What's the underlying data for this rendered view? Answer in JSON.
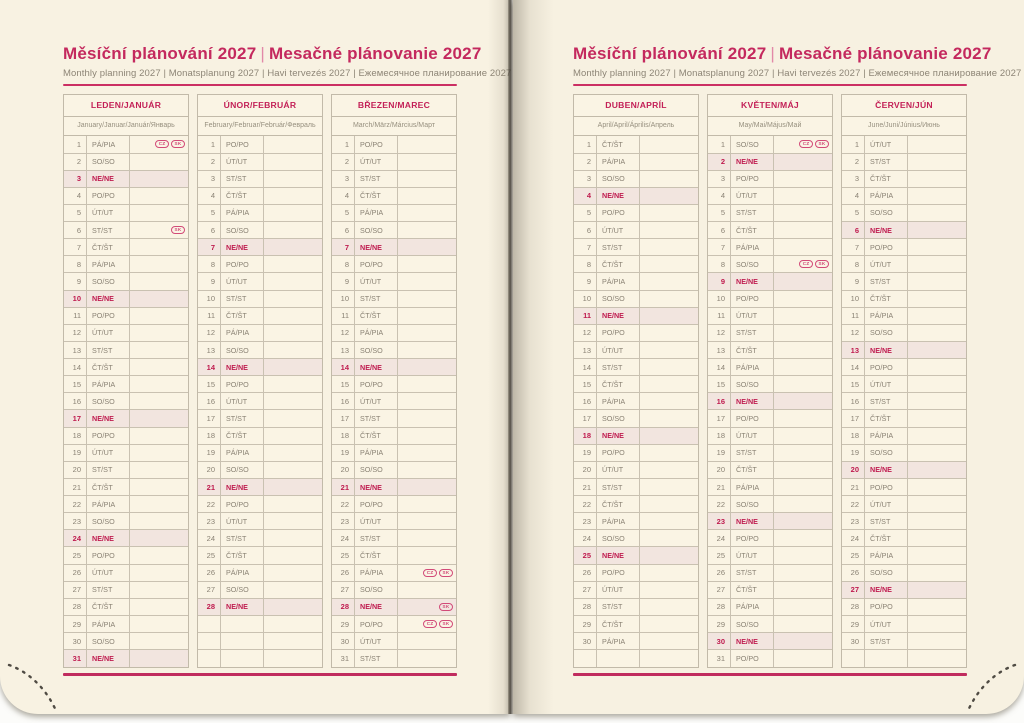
{
  "book": {
    "title_cs": "Měsíční plánování 2027",
    "title_sk": "Mesačné plánovanie 2027",
    "title_separator": "|",
    "subtitle": "Monthly planning 2027 | Monatsplanung 2027 | Havi tervezés 2027 | Ежемесячное планирование 2027",
    "year": "2027"
  },
  "colors": {
    "accent_magenta": "#c4295e",
    "sunday_red": "#bf1a4e",
    "sunday_highlight_bg": "#f2e5df",
    "page_cream": "#f8f2e2",
    "muted_text": "#8a8274",
    "table_border": "#c2baa9",
    "badge_outline": "#d24a78"
  },
  "badge_labels": {
    "CZ": "CZ",
    "SK": "SK"
  },
  "pages": [
    {
      "side": "left",
      "months": [
        {
          "name": "LEDEN/JANUÁR",
          "sublabel": "January/Januar/Január/Январь",
          "days": [
            "PÁ/PIA",
            "SO/SO",
            "NE/NE",
            "PO/PO",
            "ÚT/UT",
            "ST/ST",
            "ČT/ŠT",
            "PÁ/PIA",
            "SO/SO",
            "NE/NE",
            "PO/PO",
            "ÚT/UT",
            "ST/ST",
            "ČT/ŠT",
            "PÁ/PIA",
            "SO/SO",
            "NE/NE",
            "PO/PO",
            "ÚT/UT",
            "ST/ST",
            "ČT/ŠT",
            "PÁ/PIA",
            "SO/SO",
            "NE/NE",
            "PO/PO",
            "ÚT/UT",
            "ST/ST",
            "ČT/ŠT",
            "PÁ/PIA",
            "SO/SO",
            "NE/NE"
          ],
          "holidays": {
            "1": [
              "CZ",
              "SK"
            ],
            "6": [
              "SK"
            ]
          },
          "empty_rows": 0
        },
        {
          "name": "ÚNOR/FEBRUÁR",
          "sublabel": "February/Februar/Február/Февраль",
          "days": [
            "PO/PO",
            "ÚT/UT",
            "ST/ST",
            "ČT/ŠT",
            "PÁ/PIA",
            "SO/SO",
            "NE/NE",
            "PO/PO",
            "ÚT/UT",
            "ST/ST",
            "ČT/ŠT",
            "PÁ/PIA",
            "SO/SO",
            "NE/NE",
            "PO/PO",
            "ÚT/UT",
            "ST/ST",
            "ČT/ŠT",
            "PÁ/PIA",
            "SO/SO",
            "NE/NE",
            "PO/PO",
            "ÚT/UT",
            "ST/ST",
            "ČT/ŠT",
            "PÁ/PIA",
            "SO/SO",
            "NE/NE"
          ],
          "holidays": {},
          "empty_rows": 3
        },
        {
          "name": "BŘEZEN/MAREC",
          "sublabel": "March/März/Március/Март",
          "days": [
            "PO/PO",
            "ÚT/UT",
            "ST/ST",
            "ČT/ŠT",
            "PÁ/PIA",
            "SO/SO",
            "NE/NE",
            "PO/PO",
            "ÚT/UT",
            "ST/ST",
            "ČT/ŠT",
            "PÁ/PIA",
            "SO/SO",
            "NE/NE",
            "PO/PO",
            "ÚT/UT",
            "ST/ST",
            "ČT/ŠT",
            "PÁ/PIA",
            "SO/SO",
            "NE/NE",
            "PO/PO",
            "ÚT/UT",
            "ST/ST",
            "ČT/ŠT",
            "PÁ/PIA",
            "SO/SO",
            "NE/NE",
            "PO/PO",
            "ÚT/UT",
            "ST/ST"
          ],
          "holidays": {
            "26": [
              "CZ",
              "SK"
            ],
            "28": [
              "SK"
            ],
            "29": [
              "CZ",
              "SK"
            ]
          },
          "empty_rows": 0
        }
      ]
    },
    {
      "side": "right",
      "months": [
        {
          "name": "DUBEN/APRÍL",
          "sublabel": "April/April/Április/Апрель",
          "days": [
            "ČT/ŠT",
            "PÁ/PIA",
            "SO/SO",
            "NE/NE",
            "PO/PO",
            "ÚT/UT",
            "ST/ST",
            "ČT/ŠT",
            "PÁ/PIA",
            "SO/SO",
            "NE/NE",
            "PO/PO",
            "ÚT/UT",
            "ST/ST",
            "ČT/ŠT",
            "PÁ/PIA",
            "SO/SO",
            "NE/NE",
            "PO/PO",
            "ÚT/UT",
            "ST/ST",
            "ČT/ŠT",
            "PÁ/PIA",
            "SO/SO",
            "NE/NE",
            "PO/PO",
            "ÚT/UT",
            "ST/ST",
            "ČT/ŠT",
            "PÁ/PIA"
          ],
          "holidays": {},
          "empty_rows": 1
        },
        {
          "name": "KVĚTEN/MÁJ",
          "sublabel": "May/Mai/Május/Май",
          "days": [
            "SO/SO",
            "NE/NE",
            "PO/PO",
            "ÚT/UT",
            "ST/ST",
            "ČT/ŠT",
            "PÁ/PIA",
            "SO/SO",
            "NE/NE",
            "PO/PO",
            "ÚT/UT",
            "ST/ST",
            "ČT/ŠT",
            "PÁ/PIA",
            "SO/SO",
            "NE/NE",
            "PO/PO",
            "ÚT/UT",
            "ST/ST",
            "ČT/ŠT",
            "PÁ/PIA",
            "SO/SO",
            "NE/NE",
            "PO/PO",
            "ÚT/UT",
            "ST/ST",
            "ČT/ŠT",
            "PÁ/PIA",
            "SO/SO",
            "NE/NE",
            "PO/PO"
          ],
          "holidays": {
            "1": [
              "CZ",
              "SK"
            ],
            "8": [
              "CZ",
              "SK"
            ]
          },
          "empty_rows": 0
        },
        {
          "name": "ČERVEN/JÚN",
          "sublabel": "June/Juni/Június/Июнь",
          "days": [
            "ÚT/UT",
            "ST/ST",
            "ČT/ŠT",
            "PÁ/PIA",
            "SO/SO",
            "NE/NE",
            "PO/PO",
            "ÚT/UT",
            "ST/ST",
            "ČT/ŠT",
            "PÁ/PIA",
            "SO/SO",
            "NE/NE",
            "PO/PO",
            "ÚT/UT",
            "ST/ST",
            "ČT/ŠT",
            "PÁ/PIA",
            "SO/SO",
            "NE/NE",
            "PO/PO",
            "ÚT/UT",
            "ST/ST",
            "ČT/ŠT",
            "PÁ/PIA",
            "SO/SO",
            "NE/NE",
            "PO/PO",
            "ÚT/UT",
            "ST/ST"
          ],
          "holidays": {},
          "empty_rows": 1
        }
      ]
    }
  ]
}
